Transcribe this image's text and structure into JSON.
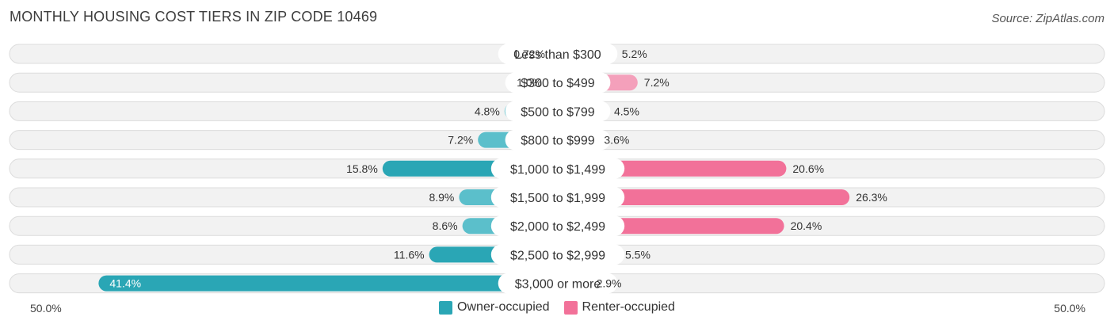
{
  "title": "MONTHLY HOUSING COST TIERS IN ZIP CODE 10469",
  "source": "Source: ZipAtlas.com",
  "colors": {
    "owner": "#5bbfcb",
    "owner_strong": "#2aa6b5",
    "renter": "#f4a0bb",
    "renter_strong": "#f27199"
  },
  "chart_data": {
    "type": "bar",
    "orientation": "horizontal-diverging",
    "categories": [
      "Less than $300",
      "$300 to $499",
      "$500 to $799",
      "$800 to $999",
      "$1,000 to $1,499",
      "$1,500 to $1,999",
      "$2,000 to $2,499",
      "$2,500 to $2,999",
      "$3,000 or more"
    ],
    "series": [
      {
        "name": "Owner-occupied",
        "values": [
          0.72,
          1.0,
          4.8,
          7.2,
          15.8,
          8.9,
          8.6,
          11.6,
          41.4
        ],
        "labels": [
          "0.72%",
          "1.0%",
          "4.8%",
          "7.2%",
          "15.8%",
          "8.9%",
          "8.6%",
          "11.6%",
          "41.4%"
        ]
      },
      {
        "name": "Renter-occupied",
        "values": [
          5.2,
          7.2,
          4.5,
          3.6,
          20.6,
          26.3,
          20.4,
          5.5,
          2.9
        ],
        "labels": [
          "5.2%",
          "7.2%",
          "4.5%",
          "3.6%",
          "20.6%",
          "26.3%",
          "20.4%",
          "5.5%",
          "2.9%"
        ]
      }
    ],
    "xlim": [
      -50,
      50
    ],
    "axis_left_label": "50.0%",
    "axis_right_label": "50.0%",
    "legend_position": "bottom-center"
  }
}
